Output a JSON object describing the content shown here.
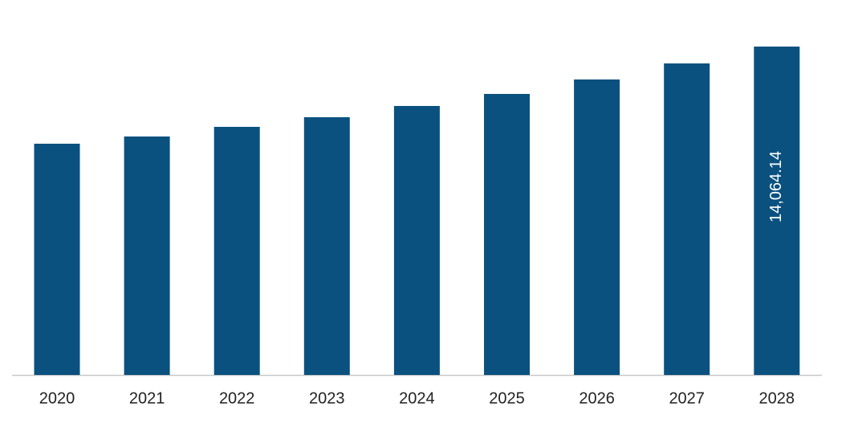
{
  "chart_data": {
    "type": "bar",
    "categories": [
      "2020",
      "2021",
      "2022",
      "2023",
      "2024",
      "2025",
      "2026",
      "2027",
      "2028"
    ],
    "values": [
      9904,
      10213,
      10626,
      11038,
      11520,
      12036,
      12655,
      13342,
      14064.14
    ],
    "value_labels": [
      null,
      null,
      null,
      null,
      null,
      null,
      null,
      null,
      "14,064.14"
    ],
    "color": "#0a5180"
  }
}
